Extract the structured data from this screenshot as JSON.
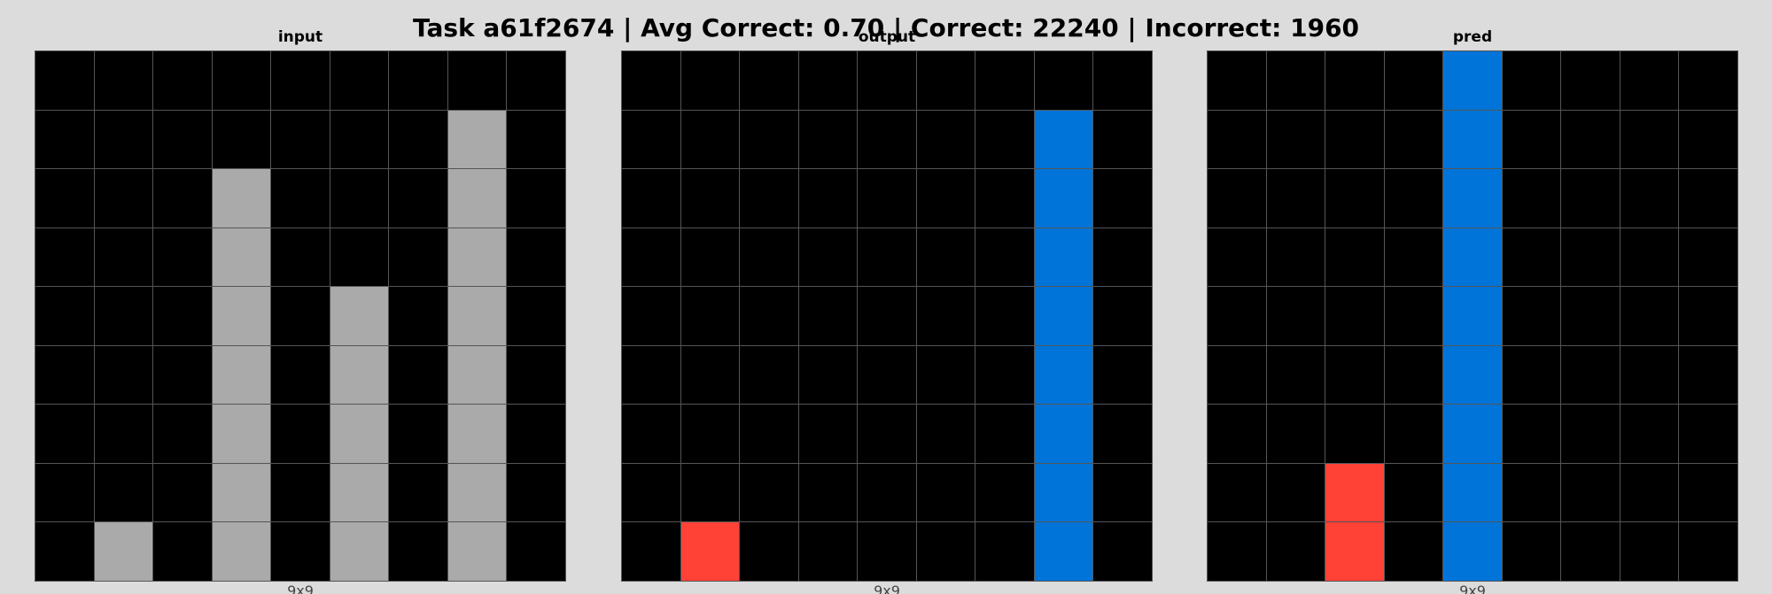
{
  "title": "Task a61f2674 | Avg Correct: 0.70 | Correct: 22240 | Incorrect: 1960",
  "palette": {
    "0": "#000000",
    "1": "#0074D9",
    "2": "#FF4136",
    "5": "#AAAAAA"
  },
  "panels": [
    {
      "title": "input",
      "size_label": "9x9",
      "grid": [
        [
          0,
          0,
          0,
          0,
          0,
          0,
          0,
          0,
          0
        ],
        [
          0,
          0,
          0,
          0,
          0,
          0,
          0,
          5,
          0
        ],
        [
          0,
          0,
          0,
          5,
          0,
          0,
          0,
          5,
          0
        ],
        [
          0,
          0,
          0,
          5,
          0,
          0,
          0,
          5,
          0
        ],
        [
          0,
          0,
          0,
          5,
          0,
          5,
          0,
          5,
          0
        ],
        [
          0,
          0,
          0,
          5,
          0,
          5,
          0,
          5,
          0
        ],
        [
          0,
          0,
          0,
          5,
          0,
          5,
          0,
          5,
          0
        ],
        [
          0,
          0,
          0,
          5,
          0,
          5,
          0,
          5,
          0
        ],
        [
          0,
          5,
          0,
          5,
          0,
          5,
          0,
          5,
          0
        ]
      ]
    },
    {
      "title": "output",
      "size_label": "9x9",
      "grid": [
        [
          0,
          0,
          0,
          0,
          0,
          0,
          0,
          0,
          0
        ],
        [
          0,
          0,
          0,
          0,
          0,
          0,
          0,
          1,
          0
        ],
        [
          0,
          0,
          0,
          0,
          0,
          0,
          0,
          1,
          0
        ],
        [
          0,
          0,
          0,
          0,
          0,
          0,
          0,
          1,
          0
        ],
        [
          0,
          0,
          0,
          0,
          0,
          0,
          0,
          1,
          0
        ],
        [
          0,
          0,
          0,
          0,
          0,
          0,
          0,
          1,
          0
        ],
        [
          0,
          0,
          0,
          0,
          0,
          0,
          0,
          1,
          0
        ],
        [
          0,
          0,
          0,
          0,
          0,
          0,
          0,
          1,
          0
        ],
        [
          0,
          2,
          0,
          0,
          0,
          0,
          0,
          1,
          0
        ]
      ]
    },
    {
      "title": "pred",
      "size_label": "9x9",
      "grid": [
        [
          0,
          0,
          0,
          0,
          1,
          0,
          0,
          0,
          0
        ],
        [
          0,
          0,
          0,
          0,
          1,
          0,
          0,
          0,
          0
        ],
        [
          0,
          0,
          0,
          0,
          1,
          0,
          0,
          0,
          0
        ],
        [
          0,
          0,
          0,
          0,
          1,
          0,
          0,
          0,
          0
        ],
        [
          0,
          0,
          0,
          0,
          1,
          0,
          0,
          0,
          0
        ],
        [
          0,
          0,
          0,
          0,
          1,
          0,
          0,
          0,
          0
        ],
        [
          0,
          0,
          0,
          0,
          1,
          0,
          0,
          0,
          0
        ],
        [
          0,
          0,
          2,
          0,
          1,
          0,
          0,
          0,
          0
        ],
        [
          0,
          0,
          2,
          0,
          1,
          0,
          0,
          0,
          0
        ]
      ]
    }
  ]
}
